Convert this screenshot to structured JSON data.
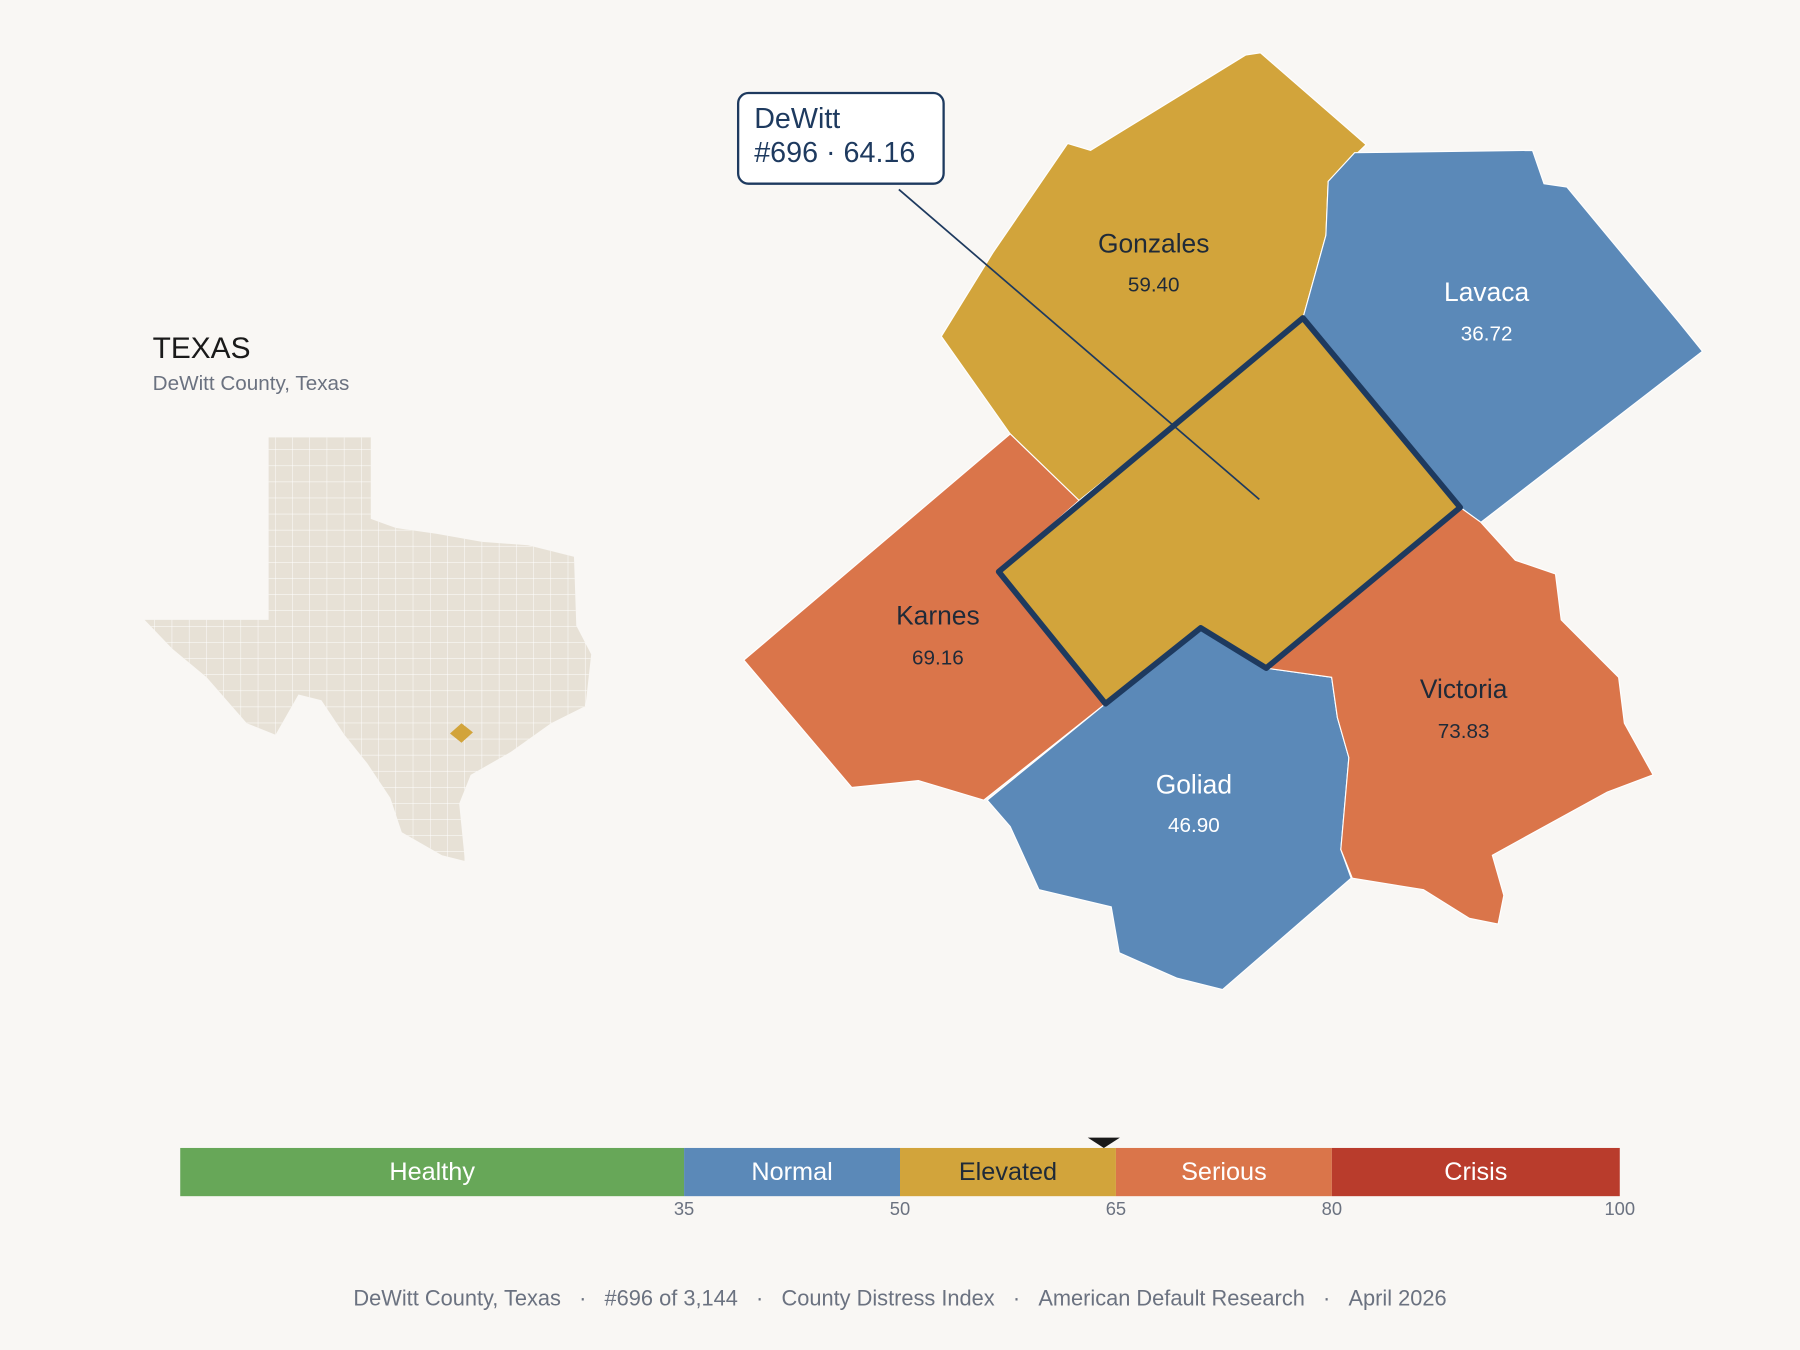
{
  "header": {
    "title": "TEXAS",
    "subtitle": "DeWitt County, Texas"
  },
  "selected": {
    "name": "DeWitt",
    "rank": "#696",
    "score": 64.16
  },
  "counties": [
    {
      "name": "Gonzales",
      "value": "59.40"
    },
    {
      "name": "Lavaca",
      "value": "36.72"
    },
    {
      "name": "Karnes",
      "value": "69.16"
    },
    {
      "name": "Goliad",
      "value": "46.90"
    },
    {
      "name": "Victoria",
      "value": "73.83"
    }
  ],
  "scale": {
    "range": [
      0,
      100
    ],
    "ticks": [
      35,
      50,
      65,
      80,
      100
    ],
    "bands": [
      {
        "label": "Healthy",
        "color": "#67a758",
        "text_color": "#ffffff"
      },
      {
        "label": "Normal",
        "color": "#5b89b8",
        "text_color": "#ffffff"
      },
      {
        "label": "Elevated",
        "color": "#d2a43b",
        "text_color": "#1f2a38"
      },
      {
        "label": "Serious",
        "color": "#da754a",
        "text_color": "#ffffff"
      },
      {
        "label": "Crisis",
        "color": "#b93c2c",
        "text_color": "#ffffff"
      }
    ]
  },
  "footer": [
    "DeWitt County, Texas",
    "#696 of 3,144",
    "County Distress Index",
    "American Default Research",
    "April 2026"
  ]
}
